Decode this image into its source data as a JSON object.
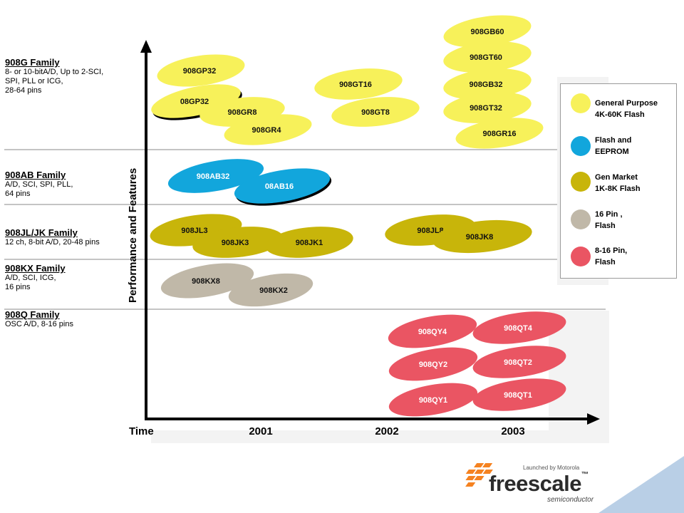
{
  "axes": {
    "y_label": "Performance and Features",
    "x_label": "Time",
    "years": [
      "2001",
      "2002",
      "2003"
    ]
  },
  "families": [
    {
      "name": "908G Family",
      "desc": "8- or 10-bitA/D, Up to 2-SCI,\nSPI, PLL or ICG,\n28-64 pins"
    },
    {
      "name": "908AB Family",
      "desc": "A/D, SCI, SPI, PLL,\n64 pins"
    },
    {
      "name": "908JL/JK Family",
      "desc": "12 ch, 8-bit A/D, 20-48 pins"
    },
    {
      "name": "908KX Family",
      "desc": "A/D, SCI, ICG,\n16 pins"
    },
    {
      "name": "908Q Family",
      "desc": "OSC A/D, 8-16 pins"
    }
  ],
  "legend": [
    {
      "category": "general",
      "label": "General Purpose\n4K-60K Flash",
      "color": "#f7f15a"
    },
    {
      "category": "flash_eeprom",
      "label": "Flash and\nEEPROM",
      "color": "#12a6dc"
    },
    {
      "category": "gen_market",
      "label": "Gen Market\n1K-8K Flash",
      "color": "#c8b50a"
    },
    {
      "category": "16pin",
      "label": "16 Pin ,\nFlash",
      "color": "#c0b8a8"
    },
    {
      "category": "8_16pin",
      "label": "8-16 Pin,\n Flash",
      "color": "#ea5563"
    }
  ],
  "parts": [
    {
      "label": "908GP32",
      "category": "general"
    },
    {
      "label": "08GP32",
      "category": "general"
    },
    {
      "label": "908GR8",
      "category": "general"
    },
    {
      "label": "908GR4",
      "category": "general"
    },
    {
      "label": "908GT16",
      "category": "general"
    },
    {
      "label": "908GT8",
      "category": "general"
    },
    {
      "label": "908GB60",
      "category": "general"
    },
    {
      "label": "908GT60",
      "category": "general"
    },
    {
      "label": "908GB32",
      "category": "general"
    },
    {
      "label": "908GT32",
      "category": "general"
    },
    {
      "label": "908GR16",
      "category": "general"
    },
    {
      "label": "908AB32",
      "category": "flash_eeprom"
    },
    {
      "label": "08AB16",
      "category": "flash_eeprom"
    },
    {
      "label": "908JL3",
      "category": "gen_market"
    },
    {
      "label": "908JK3",
      "category": "gen_market"
    },
    {
      "label": "908JK1",
      "category": "gen_market"
    },
    {
      "label": "908JL8",
      "category": "gen_market"
    },
    {
      "label": "908JK8",
      "category": "gen_market"
    },
    {
      "label": "908KX8",
      "category": "16pin"
    },
    {
      "label": "908KX2",
      "category": "16pin"
    },
    {
      "label": "908QY4",
      "category": "8_16pin"
    },
    {
      "label": "908QT4",
      "category": "8_16pin"
    },
    {
      "label": "908QY2",
      "category": "8_16pin"
    },
    {
      "label": "908QT2",
      "category": "8_16pin"
    },
    {
      "label": "908QY1",
      "category": "8_16pin"
    },
    {
      "label": "908QT1",
      "category": "8_16pin"
    }
  ],
  "branding": {
    "launched": "Launched by Motorola",
    "brand": "freescale",
    "tm": "™",
    "sub": "semiconductor"
  }
}
